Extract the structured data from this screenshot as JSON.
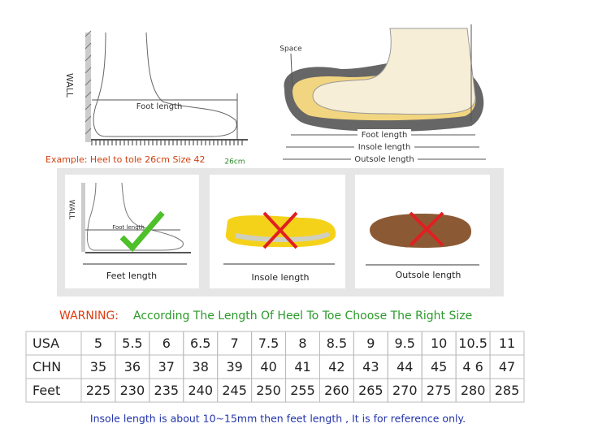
{
  "diagram_top_left": {
    "wall": "WALL",
    "foot_length": "Foot length",
    "example": "Example: Heel to tole 26cm Size 42",
    "measure": "26cm"
  },
  "diagram_top_right": {
    "space": "Space",
    "foot_length": "Foot length",
    "insole_length": "Insole length",
    "outsole_length": "Outsole length"
  },
  "panels": [
    {
      "wall": "WALL",
      "small_label": "Foot length",
      "caption": "Feet length"
    },
    {
      "caption": "Insole length"
    },
    {
      "caption": "Outsole length"
    }
  ],
  "warning": {
    "label": "WARNING:",
    "text": "According The Length Of Heel To Toe Choose The Right Size"
  },
  "table": {
    "rows": [
      [
        "USA",
        "5",
        "5.5",
        "6",
        "6.5",
        "7",
        "7.5",
        "8",
        "8.5",
        "9",
        "9.5",
        "10",
        "10.5",
        "11"
      ],
      [
        "CHN",
        "35",
        "36",
        "37",
        "38",
        "39",
        "40",
        "41",
        "42",
        "43",
        "44",
        "45",
        "4 6",
        "47"
      ],
      [
        "Feet",
        "225",
        "230",
        "235",
        "240",
        "245",
        "250",
        "255",
        "260",
        "265",
        "270",
        "275",
        "280",
        "285"
      ]
    ]
  },
  "footer": "Insole length is about 10~15mm then feet length , It is for reference only."
}
